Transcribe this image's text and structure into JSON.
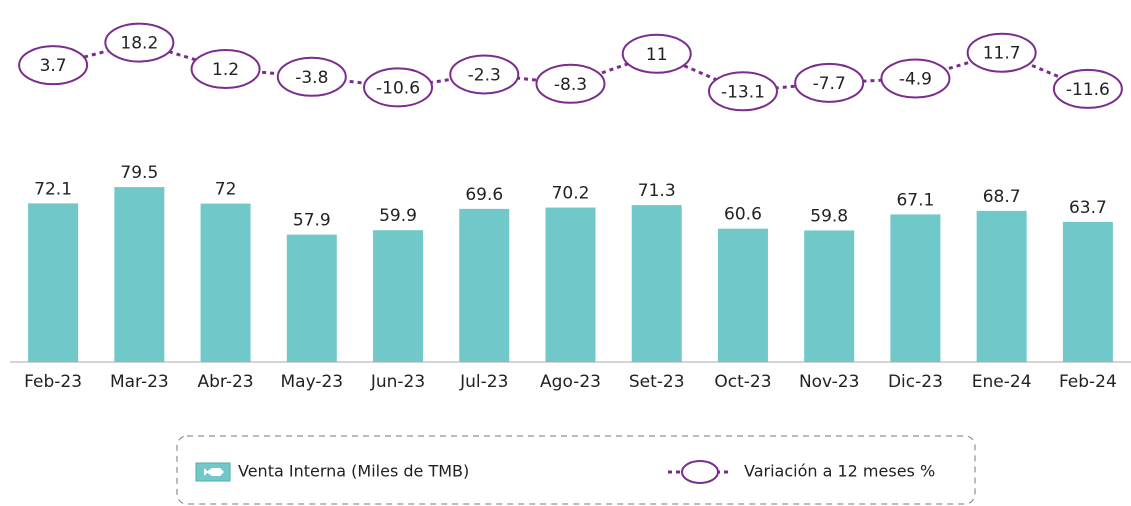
{
  "chart_data": {
    "type": "bar-line",
    "categories": [
      "Feb-23",
      "Mar-23",
      "Abr-23",
      "May-23",
      "Jun-23",
      "Jul-23",
      "Ago-23",
      "Set-23",
      "Oct-23",
      "Nov-23",
      "Dic-23",
      "Ene-24",
      "Feb-24"
    ],
    "series": [
      {
        "name": "Venta Interna (Miles de TMB)",
        "type": "bar",
        "color": "#70c9c8",
        "values": [
          72.1,
          79.5,
          72.0,
          57.9,
          59.9,
          69.6,
          70.2,
          71.3,
          60.6,
          59.8,
          67.1,
          68.7,
          63.7
        ]
      },
      {
        "name": "Variación a 12 meses %",
        "type": "line",
        "axis": "y2",
        "color": "#7b2d8e",
        "values": [
          3.7,
          18.2,
          1.2,
          -3.8,
          -10.6,
          -2.3,
          -8.3,
          11.0,
          -13.1,
          -7.7,
          -4.9,
          11.7,
          -11.6
        ]
      }
    ],
    "ylim": [
      0,
      85
    ],
    "y2lim": [
      -20,
      25
    ]
  }
}
